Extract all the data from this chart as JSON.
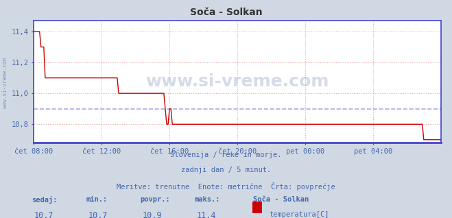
{
  "title": "Soča - Solkan",
  "bg_color": "#d0d8e4",
  "plot_bg_color": "#ffffff",
  "grid_color": "#e8a0a0",
  "line_color": "#cc0000",
  "avg_line_color": "#aaaaee",
  "axis_color": "#4444cc",
  "text_color": "#4466aa",
  "ylim": [
    10.68,
    11.47
  ],
  "yticks": [
    10.8,
    11.0,
    11.2,
    11.4
  ],
  "ytick_labels": [
    "10,8",
    "11,0",
    "11,2",
    "11,4"
  ],
  "avg_value": 10.9,
  "subtitle1": "Slovenija / reke in morje.",
  "subtitle2": "zadnji dan / 5 minut.",
  "subtitle3": "Meritve: trenutne  Enote: metrične  Črta: povprečje",
  "footer_labels": [
    "sedaj:",
    "min.:",
    "povpr.:",
    "maks.:"
  ],
  "footer_values": [
    "10,7",
    "10,7",
    "10,9",
    "11,4"
  ],
  "footer_station": "Soča - Solkan",
  "footer_sensor": "temperatura[C]",
  "xtick_labels": [
    "čet 08:00",
    "čet 12:00",
    "čet 16:00",
    "čet 20:00",
    "pet 00:00",
    "pet 04:00"
  ],
  "xtick_positions": [
    0,
    240,
    480,
    720,
    960,
    1200
  ],
  "total_minutes": 1440,
  "watermark": "www.si-vreme.com",
  "left_label": "www.si-vreme.com",
  "data_points": [
    [
      0,
      11.4
    ],
    [
      20,
      11.4
    ],
    [
      25,
      11.3
    ],
    [
      35,
      11.3
    ],
    [
      240,
      11.1
    ],
    [
      280,
      11.1
    ],
    [
      300,
      11.0
    ],
    [
      460,
      11.0
    ],
    [
      462,
      10.9
    ],
    [
      470,
      10.8
    ],
    [
      480,
      10.9
    ],
    [
      495,
      10.8
    ],
    [
      1370,
      10.8
    ],
    [
      1380,
      10.8
    ],
    [
      1435,
      10.8
    ],
    [
      1440,
      10.7
    ]
  ]
}
